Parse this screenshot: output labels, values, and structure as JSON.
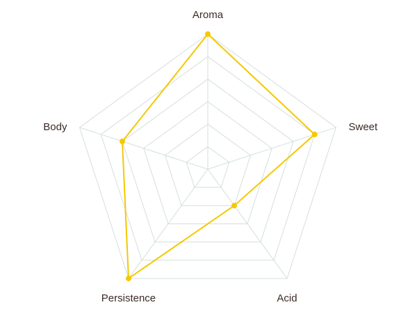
{
  "chart_data": {
    "type": "radar",
    "categories": [
      "Aroma",
      "Sweet",
      "Acid",
      "Persistence",
      "Body"
    ],
    "values": [
      6,
      5,
      2,
      6,
      4
    ],
    "color": "#f5c800",
    "grid_color": "#d3dfdc",
    "rlim": [
      0,
      6
    ],
    "rticks": [
      1,
      2,
      3,
      4,
      5,
      6
    ]
  }
}
